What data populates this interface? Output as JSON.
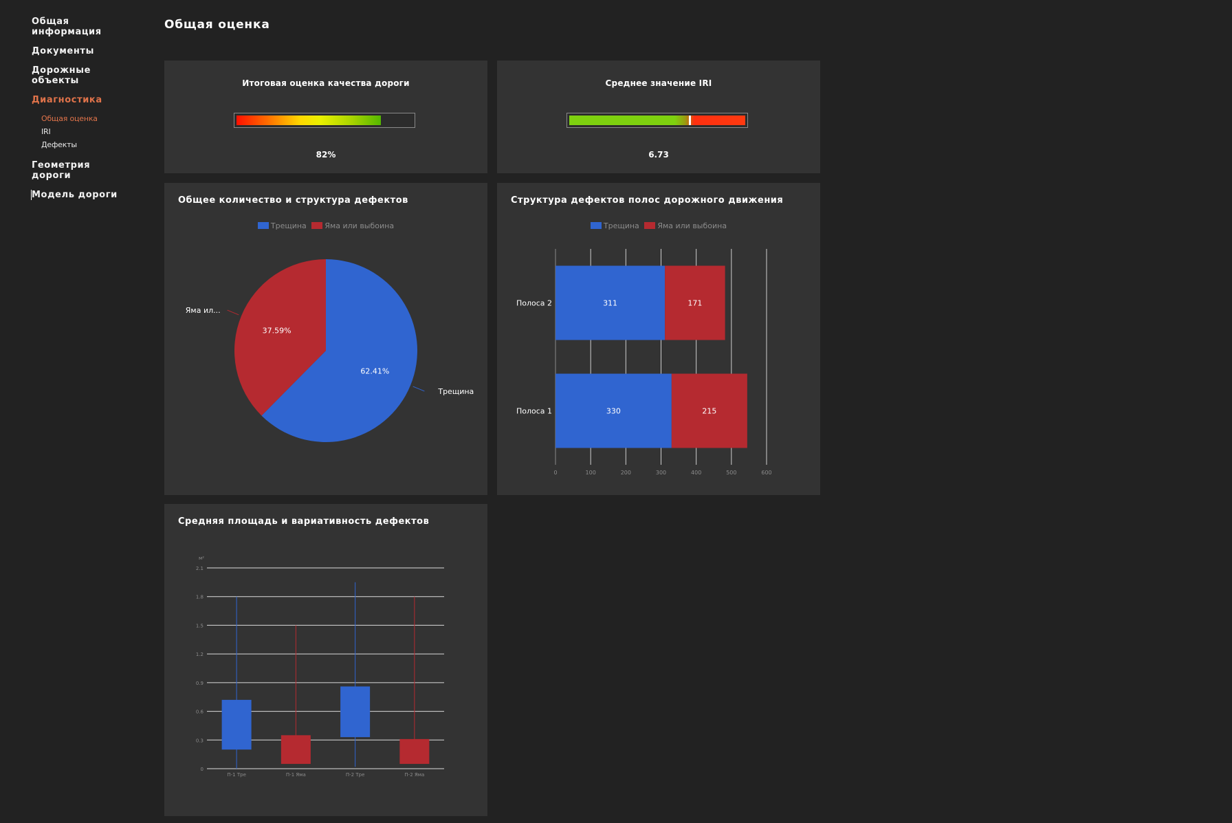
{
  "sidebar": {
    "items": [
      {
        "label": "Общая\nинформация"
      },
      {
        "label": "Документы"
      },
      {
        "label": "Дорожные\nобъекты"
      },
      {
        "label": "Диагностика"
      },
      {
        "label": "Геометрия\nдороги"
      },
      {
        "label": "Модель дороги"
      }
    ],
    "sub_items": [
      {
        "label": "Общая оценка"
      },
      {
        "label": "IRI"
      },
      {
        "label": "Дефекты"
      }
    ]
  },
  "page_title": "Общая оценка",
  "colors": {
    "blue": "#3065d0",
    "red": "#b52a30",
    "accent": "#e0734a",
    "panel": "#333333",
    "background": "#222222"
  },
  "quality_panel": {
    "title": "Итоговая оценка качества дороги",
    "value_label": "82%",
    "fill_percent": 82
  },
  "iri_panel": {
    "title": "Среднее значение IRI",
    "value_label": "6.73",
    "marker_fraction": 0.68
  },
  "defects_panel": {
    "title": "Общее количество и структура дефектов",
    "legend": [
      {
        "label": "Трещина"
      },
      {
        "label": "Яма или выбоина"
      }
    ]
  },
  "lanes_panel": {
    "title": "Структура дефектов полос дорожного движения",
    "legend": [
      {
        "label": "Трещина"
      },
      {
        "label": "Яма или выбоина"
      }
    ]
  },
  "area_panel": {
    "title": "Средняя площадь и вариативность дефектов"
  },
  "chart_data": [
    {
      "type": "pie",
      "title": "Общее количество и структура дефектов",
      "slices": [
        {
          "name": "Трещина",
          "value": 62.41,
          "label": "62.41%",
          "outer_label": "Трещина"
        },
        {
          "name": "Яма или выбоина",
          "value": 37.59,
          "label": "37.59%",
          "outer_label": "Яма ил..."
        }
      ]
    },
    {
      "type": "bar",
      "orientation": "horizontal",
      "stacked": true,
      "title": "Структура дефектов полос дорожного движения",
      "categories": [
        "Полоса 2",
        "Полоса 1"
      ],
      "series": [
        {
          "name": "Трещина",
          "values": [
            311,
            330
          ]
        },
        {
          "name": "Яма или выбоина",
          "values": [
            171,
            215
          ]
        }
      ],
      "xlim": [
        0,
        600
      ],
      "ticks": [
        "0",
        "100",
        "200",
        "300",
        "400",
        "500",
        "600"
      ],
      "grid": true
    },
    {
      "type": "candlestick",
      "title": "Средняя площадь и вариативность дефектов",
      "ylabel": "м²",
      "ylim": [
        0,
        2.1
      ],
      "yticks": [
        "0",
        "0.3",
        "0.6",
        "0.9",
        "1.2",
        "1.5",
        "1.8",
        "2.1"
      ],
      "categories": [
        "П-1 Тре",
        "П-1 Яма",
        "П-2 Тре",
        "П-2 Яма"
      ],
      "boxes": [
        {
          "low": 0.0,
          "open": 0.2,
          "close": 0.72,
          "high": 1.8,
          "series": "Трещина"
        },
        {
          "low": 0.05,
          "open": 0.05,
          "close": 0.35,
          "high": 1.5,
          "series": "Яма или выбоина"
        },
        {
          "low": 0.02,
          "open": 0.33,
          "close": 0.86,
          "high": 1.95,
          "series": "Трещина"
        },
        {
          "low": 0.05,
          "open": 0.05,
          "close": 0.31,
          "high": 1.8,
          "series": "Яма или выбоина"
        }
      ],
      "grid": true
    }
  ]
}
